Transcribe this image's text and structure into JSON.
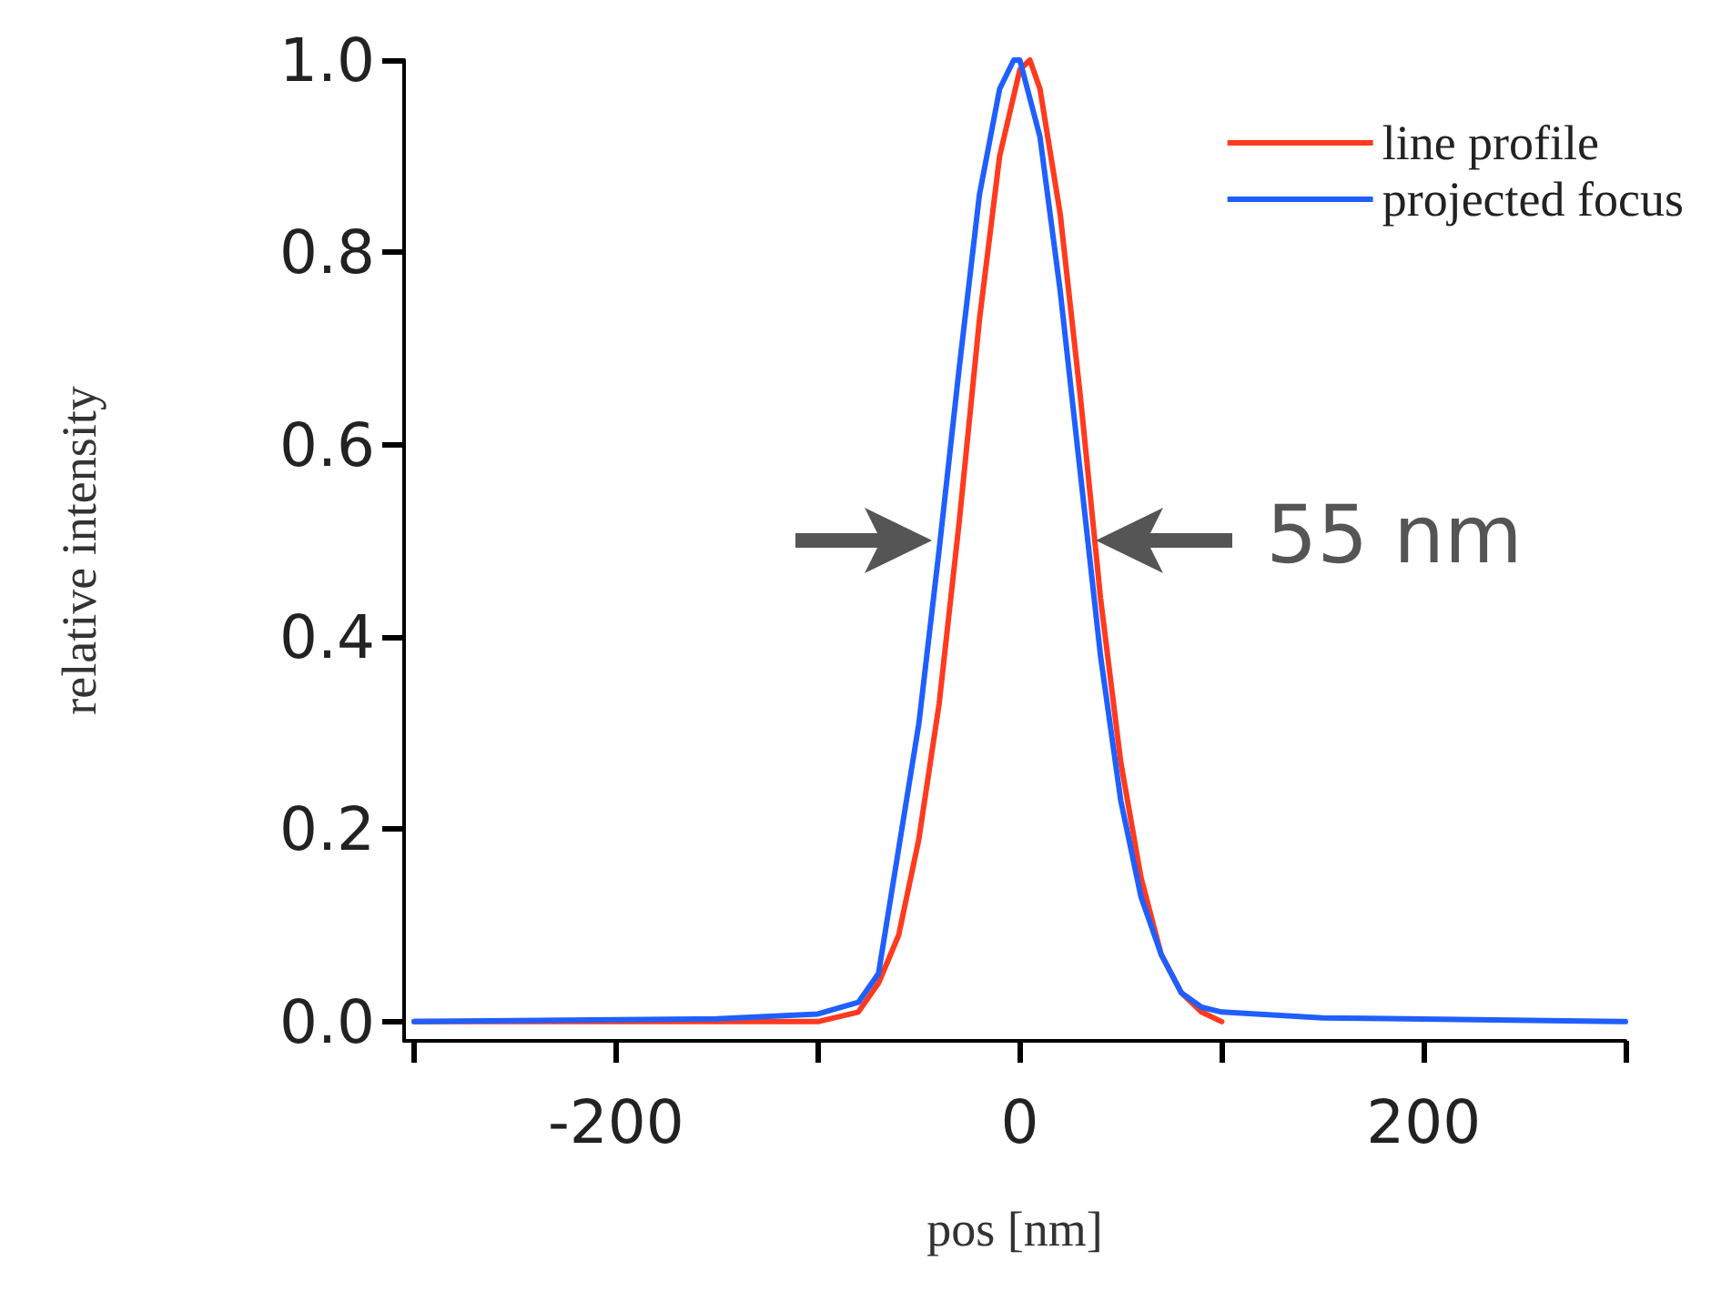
{
  "chart_data": {
    "type": "line",
    "xlabel": "pos [nm]",
    "ylabel": "relative intensity",
    "annotations": [
      "55 nm"
    ],
    "xlim": [
      -305,
      300
    ],
    "xticks": [
      {
        "value": -300,
        "label": null
      },
      -200,
      {
        "value": -100,
        "label": null
      },
      0,
      {
        "value": 100,
        "label": null
      },
      200,
      {
        "value": 300,
        "label": null
      }
    ],
    "ylim": [
      -0.02,
      1.0
    ],
    "yticks": [
      {
        "value": 0,
        "label": "0.0"
      },
      {
        "value": 0.2,
        "label": "0.2"
      },
      {
        "value": 0.4,
        "label": "0.4"
      },
      {
        "value": 0.6,
        "label": "0.6"
      },
      {
        "value": 0.8,
        "label": "0.8"
      },
      {
        "value": 1.0,
        "label": "1.0"
      }
    ],
    "grid": false,
    "legend": "top right",
    "marker": "none",
    "line_style": "solid",
    "series": [
      {
        "name": "line profile",
        "color": "#ff3a1f",
        "x": [
          -300,
          -150,
          -100,
          -80,
          -70,
          -60,
          -50,
          -40,
          -30,
          -20,
          -10,
          0,
          5,
          10,
          20,
          30,
          40,
          50,
          60,
          70,
          80,
          90,
          100
        ],
        "values": [
          0,
          0,
          0,
          0.01,
          0.04,
          0.09,
          0.19,
          0.33,
          0.52,
          0.73,
          0.9,
          0.99,
          1.0,
          0.97,
          0.84,
          0.65,
          0.44,
          0.27,
          0.15,
          0.07,
          0.03,
          0.01,
          0
        ]
      },
      {
        "name": "projected focus",
        "color": "#1f5fff",
        "x": [
          -300,
          -150,
          -100,
          -80,
          -70,
          -60,
          -50,
          -40,
          -30,
          -20,
          -10,
          -3,
          0,
          10,
          20,
          30,
          40,
          50,
          60,
          70,
          80,
          90,
          100,
          150,
          300
        ],
        "values": [
          0,
          0.003,
          0.008,
          0.02,
          0.05,
          0.18,
          0.31,
          0.49,
          0.68,
          0.86,
          0.97,
          1.0,
          1.0,
          0.92,
          0.76,
          0.57,
          0.38,
          0.23,
          0.13,
          0.07,
          0.03,
          0.015,
          0.01,
          0.004,
          0
        ]
      }
    ]
  }
}
